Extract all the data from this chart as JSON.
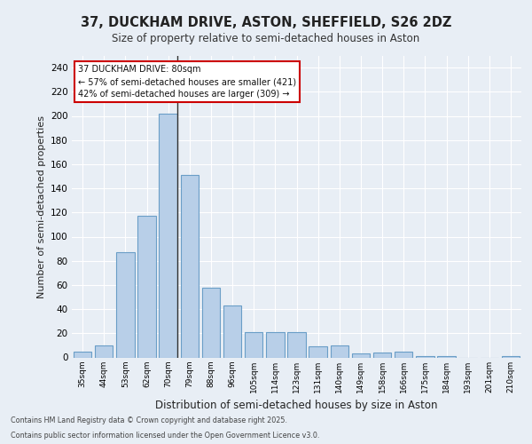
{
  "title_line1": "37, DUCKHAM DRIVE, ASTON, SHEFFIELD, S26 2DZ",
  "title_line2": "Size of property relative to semi-detached houses in Aston",
  "xlabel": "Distribution of semi-detached houses by size in Aston",
  "ylabel": "Number of semi-detached properties",
  "categories": [
    "35sqm",
    "44sqm",
    "53sqm",
    "62sqm",
    "70sqm",
    "79sqm",
    "88sqm",
    "96sqm",
    "105sqm",
    "114sqm",
    "123sqm",
    "131sqm",
    "140sqm",
    "149sqm",
    "158sqm",
    "166sqm",
    "175sqm",
    "184sqm",
    "193sqm",
    "201sqm",
    "210sqm"
  ],
  "values": [
    5,
    10,
    87,
    117,
    202,
    151,
    58,
    43,
    21,
    21,
    21,
    9,
    10,
    3,
    4,
    5,
    1,
    1,
    0,
    0,
    1
  ],
  "bar_color": "#b8cfe8",
  "bar_edge_color": "#6a9ec7",
  "highlight_bar_index": 4,
  "highlight_line_color": "#333333",
  "annotation_text": "37 DUCKHAM DRIVE: 80sqm\n← 57% of semi-detached houses are smaller (421)\n42% of semi-detached houses are larger (309) →",
  "annotation_box_color": "#ffffff",
  "annotation_box_edge_color": "#cc0000",
  "background_color": "#e8eef5",
  "plot_bg_color": "#e8eef5",
  "grid_color": "#ffffff",
  "ylim": [
    0,
    250
  ],
  "yticks": [
    0,
    20,
    40,
    60,
    80,
    100,
    120,
    140,
    160,
    180,
    200,
    220,
    240
  ],
  "footnote_line1": "Contains HM Land Registry data © Crown copyright and database right 2025.",
  "footnote_line2": "Contains public sector information licensed under the Open Government Licence v3.0."
}
